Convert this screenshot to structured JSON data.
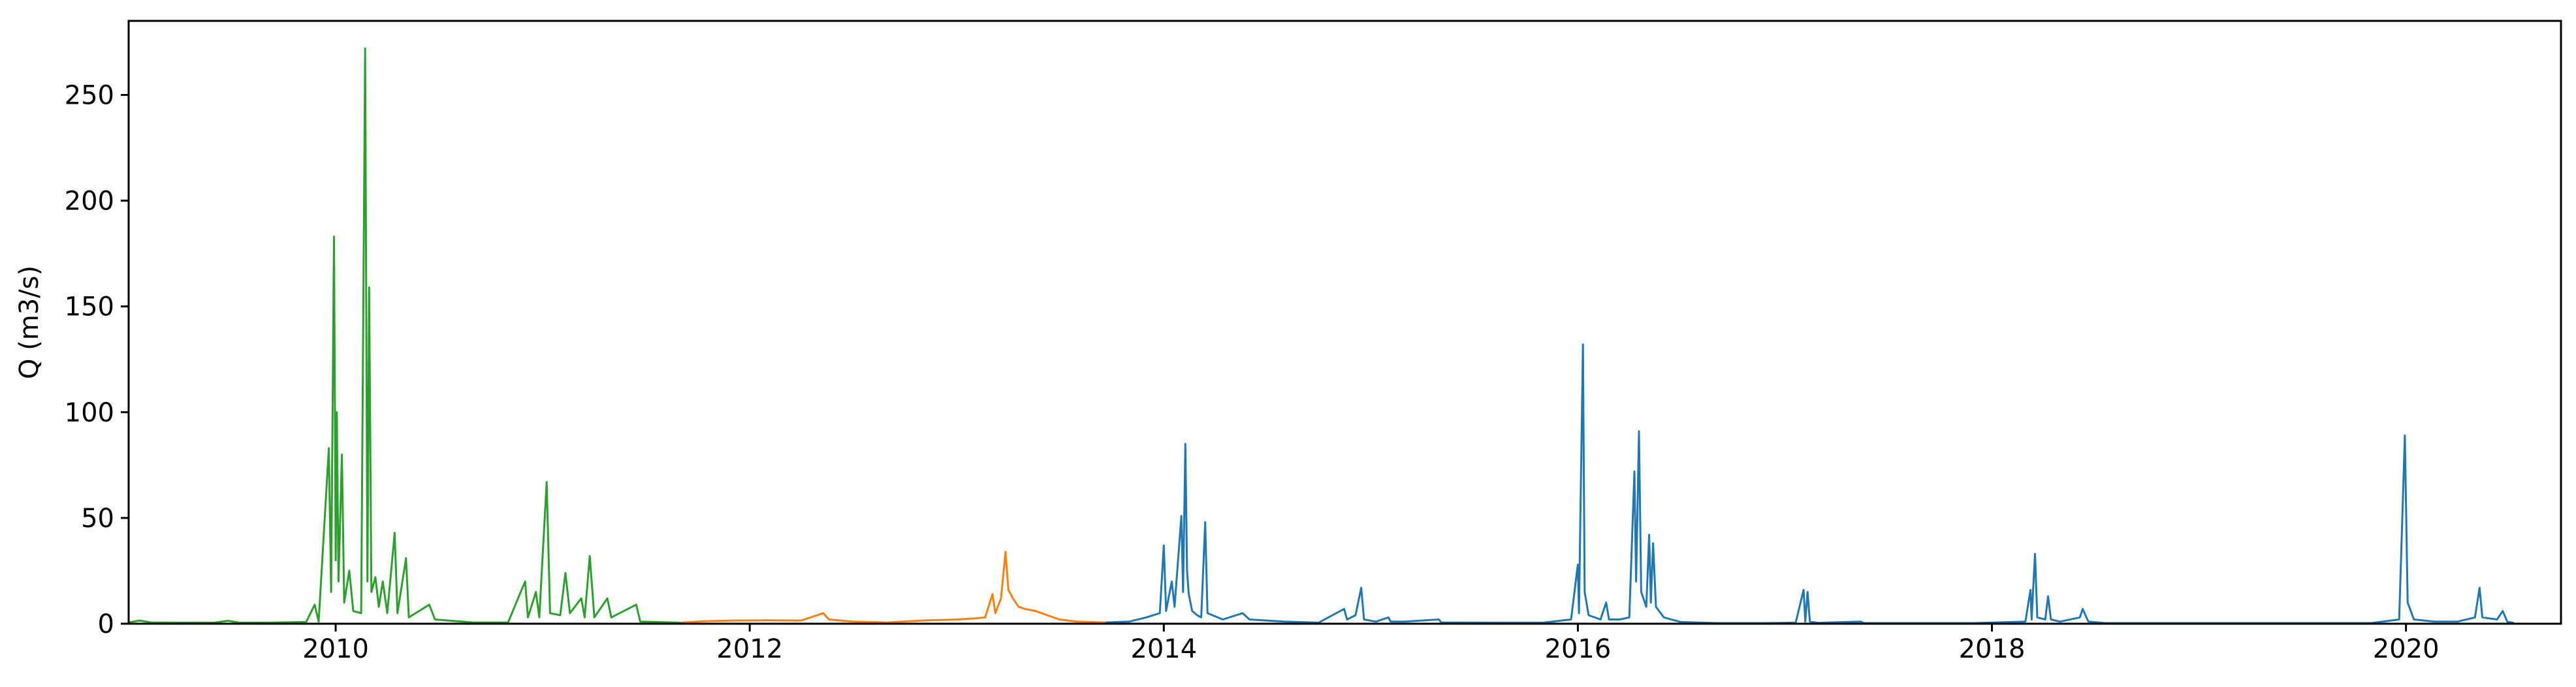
{
  "chart_data": {
    "type": "line",
    "title": "",
    "xlabel": "",
    "ylabel": "Q (m3/s)",
    "x_range": [
      "2009-01-01",
      "2020-10-01"
    ],
    "ylim": [
      0,
      285
    ],
    "grid": false,
    "legend": "none",
    "x_ticks": [
      {
        "date": "2010-01-01",
        "label": "2010"
      },
      {
        "date": "2012-01-01",
        "label": "2012"
      },
      {
        "date": "2014-01-01",
        "label": "2014"
      },
      {
        "date": "2016-01-01",
        "label": "2016"
      },
      {
        "date": "2018-01-01",
        "label": "2018"
      },
      {
        "date": "2020-01-01",
        "label": "2020"
      }
    ],
    "y_ticks": [
      0,
      50,
      100,
      150,
      200,
      250
    ],
    "series": [
      {
        "color": "#2ca02c",
        "points": [
          [
            "2009-01-01",
            0.6
          ],
          [
            "2009-01-20",
            1.5
          ],
          [
            "2009-02-10",
            0.6
          ],
          [
            "2009-04-01",
            0.5
          ],
          [
            "2009-06-01",
            0.5
          ],
          [
            "2009-06-25",
            1.4
          ],
          [
            "2009-07-15",
            0.5
          ],
          [
            "2009-09-01",
            0.5
          ],
          [
            "2009-11-10",
            0.8
          ],
          [
            "2009-11-25",
            9
          ],
          [
            "2009-12-02",
            1
          ],
          [
            "2009-12-20",
            83
          ],
          [
            "2009-12-24",
            15
          ],
          [
            "2009-12-29",
            183
          ],
          [
            "2010-01-01",
            30
          ],
          [
            "2010-01-03",
            100
          ],
          [
            "2010-01-06",
            20
          ],
          [
            "2010-01-12",
            80
          ],
          [
            "2010-01-16",
            10
          ],
          [
            "2010-01-25",
            25
          ],
          [
            "2010-02-01",
            6
          ],
          [
            "2010-02-15",
            5
          ],
          [
            "2010-02-22",
            272
          ],
          [
            "2010-02-26",
            20
          ],
          [
            "2010-03-01",
            159
          ],
          [
            "2010-03-05",
            15
          ],
          [
            "2010-03-12",
            22
          ],
          [
            "2010-03-18",
            8
          ],
          [
            "2010-03-25",
            20
          ],
          [
            "2010-04-02",
            5
          ],
          [
            "2010-04-15",
            43
          ],
          [
            "2010-04-20",
            5
          ],
          [
            "2010-05-05",
            31
          ],
          [
            "2010-05-10",
            3
          ],
          [
            "2010-06-15",
            9
          ],
          [
            "2010-06-25",
            2
          ],
          [
            "2010-09-01",
            0.6
          ],
          [
            "2010-11-01",
            0.6
          ],
          [
            "2010-12-01",
            20
          ],
          [
            "2010-12-06",
            3
          ],
          [
            "2010-12-20",
            15
          ],
          [
            "2010-12-26",
            3
          ],
          [
            "2011-01-08",
            67
          ],
          [
            "2011-01-14",
            5
          ],
          [
            "2011-02-01",
            4
          ],
          [
            "2011-02-10",
            24
          ],
          [
            "2011-02-18",
            5
          ],
          [
            "2011-03-10",
            12
          ],
          [
            "2011-03-16",
            3
          ],
          [
            "2011-03-25",
            32
          ],
          [
            "2011-04-02",
            3
          ],
          [
            "2011-04-25",
            12
          ],
          [
            "2011-05-02",
            3
          ],
          [
            "2011-06-15",
            9
          ],
          [
            "2011-06-22",
            1
          ],
          [
            "2011-09-01",
            0.5
          ]
        ]
      },
      {
        "color": "#ff7f0e",
        "points": [
          [
            "2011-09-01",
            0.5
          ],
          [
            "2011-10-15",
            1.2
          ],
          [
            "2011-12-01",
            1.5
          ],
          [
            "2012-02-01",
            1.6
          ],
          [
            "2012-04-01",
            1.5
          ],
          [
            "2012-05-10",
            5
          ],
          [
            "2012-05-20",
            2
          ],
          [
            "2012-07-01",
            1
          ],
          [
            "2012-09-01",
            0.6
          ],
          [
            "2012-11-01",
            1.5
          ],
          [
            "2013-01-01",
            2
          ],
          [
            "2013-02-01",
            2.5
          ],
          [
            "2013-02-20",
            3
          ],
          [
            "2013-03-05",
            14
          ],
          [
            "2013-03-10",
            5
          ],
          [
            "2013-03-20",
            12
          ],
          [
            "2013-03-28",
            34
          ],
          [
            "2013-04-02",
            16
          ],
          [
            "2013-04-10",
            12
          ],
          [
            "2013-04-20",
            8
          ],
          [
            "2013-05-01",
            7
          ],
          [
            "2013-05-20",
            6
          ],
          [
            "2013-06-10",
            4
          ],
          [
            "2013-07-01",
            2
          ],
          [
            "2013-08-01",
            1
          ],
          [
            "2013-09-20",
            0.6
          ]
        ]
      },
      {
        "color": "#1f77b4",
        "points": [
          [
            "2013-09-20",
            0.6
          ],
          [
            "2013-11-01",
            1
          ],
          [
            "2013-12-01",
            3
          ],
          [
            "2013-12-25",
            5
          ],
          [
            "2014-01-01",
            37
          ],
          [
            "2014-01-05",
            6
          ],
          [
            "2014-01-15",
            20
          ],
          [
            "2014-01-20",
            8
          ],
          [
            "2014-02-01",
            51
          ],
          [
            "2014-02-04",
            15
          ],
          [
            "2014-02-08",
            85
          ],
          [
            "2014-02-11",
            25
          ],
          [
            "2014-02-14",
            14
          ],
          [
            "2014-02-20",
            6
          ],
          [
            "2014-03-01",
            4
          ],
          [
            "2014-03-08",
            3
          ],
          [
            "2014-03-15",
            48
          ],
          [
            "2014-03-19",
            5
          ],
          [
            "2014-04-15",
            2
          ],
          [
            "2014-05-20",
            5
          ],
          [
            "2014-06-01",
            2
          ],
          [
            "2014-08-01",
            1
          ],
          [
            "2014-10-01",
            0.5
          ],
          [
            "2014-11-15",
            7
          ],
          [
            "2014-11-20",
            2
          ],
          [
            "2014-12-05",
            4
          ],
          [
            "2014-12-15",
            17
          ],
          [
            "2014-12-20",
            2
          ],
          [
            "2015-01-10",
            1
          ],
          [
            "2015-02-01",
            3
          ],
          [
            "2015-02-05",
            1
          ],
          [
            "2015-03-01",
            1
          ],
          [
            "2015-05-01",
            2
          ],
          [
            "2015-05-05",
            0.6
          ],
          [
            "2015-08-01",
            0.5
          ],
          [
            "2015-11-01",
            0.5
          ],
          [
            "2015-12-20",
            2
          ],
          [
            "2016-01-01",
            28
          ],
          [
            "2016-01-03",
            5
          ],
          [
            "2016-01-10",
            132
          ],
          [
            "2016-01-13",
            15
          ],
          [
            "2016-01-20",
            4
          ],
          [
            "2016-02-10",
            2
          ],
          [
            "2016-02-20",
            10
          ],
          [
            "2016-02-25",
            2
          ],
          [
            "2016-03-15",
            2
          ],
          [
            "2016-04-01",
            3
          ],
          [
            "2016-04-10",
            72
          ],
          [
            "2016-04-13",
            20
          ],
          [
            "2016-04-18",
            91
          ],
          [
            "2016-04-22",
            15
          ],
          [
            "2016-05-01",
            8
          ],
          [
            "2016-05-06",
            42
          ],
          [
            "2016-05-09",
            10
          ],
          [
            "2016-05-13",
            38
          ],
          [
            "2016-05-18",
            8
          ],
          [
            "2016-06-01",
            3
          ],
          [
            "2016-07-01",
            0.8
          ],
          [
            "2016-09-01",
            0.3
          ],
          [
            "2016-12-01",
            0.3
          ],
          [
            "2017-01-20",
            0.5
          ],
          [
            "2017-02-03",
            16
          ],
          [
            "2017-02-06",
            1
          ],
          [
            "2017-02-10",
            15
          ],
          [
            "2017-02-14",
            1
          ],
          [
            "2017-03-01",
            0.4
          ],
          [
            "2017-05-15",
            1
          ],
          [
            "2017-05-20",
            0.3
          ],
          [
            "2017-09-01",
            0.3
          ],
          [
            "2017-12-01",
            0.3
          ],
          [
            "2018-03-01",
            1
          ],
          [
            "2018-03-10",
            16
          ],
          [
            "2018-03-12",
            2
          ],
          [
            "2018-03-18",
            33
          ],
          [
            "2018-03-22",
            3
          ],
          [
            "2018-04-05",
            2
          ],
          [
            "2018-04-10",
            13
          ],
          [
            "2018-04-15",
            2
          ],
          [
            "2018-05-01",
            1
          ],
          [
            "2018-06-05",
            3
          ],
          [
            "2018-06-10",
            7
          ],
          [
            "2018-06-20",
            1
          ],
          [
            "2018-07-20",
            0.3
          ],
          [
            "2018-12-01",
            0.3
          ],
          [
            "2019-06-01",
            0.3
          ],
          [
            "2019-11-01",
            0.3
          ],
          [
            "2019-12-20",
            2
          ],
          [
            "2019-12-30",
            89
          ],
          [
            "2020-01-04",
            10
          ],
          [
            "2020-01-15",
            2
          ],
          [
            "2020-02-20",
            1
          ],
          [
            "2020-04-01",
            1
          ],
          [
            "2020-05-02",
            3
          ],
          [
            "2020-05-10",
            17
          ],
          [
            "2020-05-15",
            3
          ],
          [
            "2020-06-10",
            2
          ],
          [
            "2020-06-20",
            6
          ],
          [
            "2020-06-28",
            1
          ],
          [
            "2020-07-10",
            0.3
          ]
        ]
      }
    ]
  }
}
